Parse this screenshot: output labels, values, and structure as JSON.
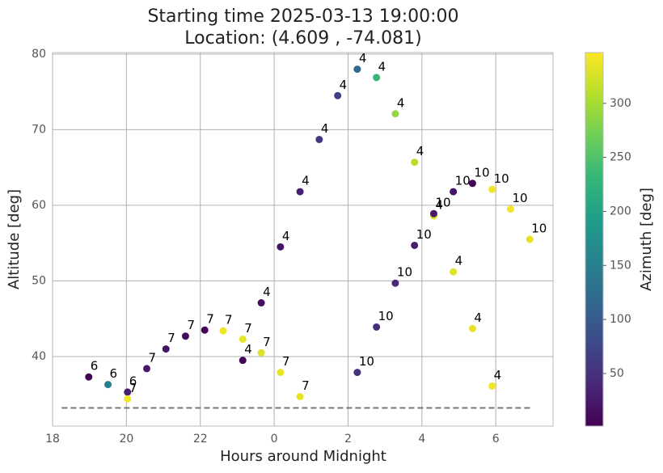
{
  "chart_data": {
    "type": "scatter",
    "title": [
      "Starting time 2025-03-13 19:00:00",
      "Location: (4.609 , -74.081)"
    ],
    "x_label": "Hours around Midnight",
    "y_label": "Altitude [deg]",
    "colorbar_label": "Azimuth [deg]",
    "colormap": "viridis",
    "grid": true,
    "x": [
      -5.02,
      -4.5,
      -3.97,
      -3.97,
      -3.45,
      -2.93,
      -2.4,
      -1.88,
      -1.38,
      -0.85,
      -0.35,
      0.17,
      0.7,
      -0.85,
      -0.35,
      0.17,
      0.7,
      1.22,
      1.72,
      2.25,
      2.77,
      3.28,
      3.8,
      4.32,
      4.85,
      5.37,
      5.9,
      2.25,
      2.77,
      3.28,
      3.8,
      4.32,
      4.85,
      5.37,
      5.9,
      6.4,
      6.92
    ],
    "values": [
      37.3,
      36.3,
      35.3,
      34.4,
      38.4,
      41.0,
      42.7,
      43.5,
      43.4,
      42.3,
      40.5,
      37.9,
      34.7,
      39.5,
      47.1,
      54.5,
      61.8,
      68.7,
      74.5,
      78.0,
      76.9,
      72.1,
      65.7,
      58.6,
      51.2,
      43.7,
      36.1,
      37.9,
      43.9,
      49.7,
      54.7,
      58.9,
      61.8,
      62.9,
      62.1,
      59.5,
      55.5
    ],
    "azimuth": [
      5,
      150,
      30,
      340,
      25,
      20,
      10,
      5,
      340,
      335,
      330,
      335,
      335,
      5,
      15,
      20,
      30,
      60,
      70,
      120,
      230,
      290,
      310,
      325,
      330,
      335,
      340,
      50,
      45,
      40,
      30,
      25,
      20,
      5,
      340,
      340,
      335
    ],
    "point_labels": [
      "6",
      "6",
      "6",
      "7",
      "7",
      "7",
      "7",
      "7",
      "7",
      "7",
      "7",
      "7",
      "7",
      "4",
      "4",
      "4",
      "4",
      "4",
      "4",
      "4",
      "4",
      "4",
      "4",
      "4",
      "4",
      "4",
      "4",
      "10",
      "10",
      "10",
      "10",
      "10",
      "10",
      "10",
      "10",
      "10",
      "10"
    ],
    "threshold": {
      "y": 33.2,
      "x": [
        -5.75,
        7.0
      ],
      "color": "#777777"
    },
    "xlim": [
      -6,
      7.55
    ],
    "ylim": [
      30.8,
      80.2
    ],
    "clim": [
      1.3,
      347
    ],
    "xticks": [
      {
        "value": -6,
        "label": "18"
      },
      {
        "value": -4,
        "label": "20"
      },
      {
        "value": -2,
        "label": "22"
      },
      0,
      2,
      4,
      6
    ],
    "yticks": [
      40,
      50,
      60,
      70,
      80
    ],
    "cticks": [
      50,
      100,
      150,
      200,
      250,
      300
    ]
  }
}
